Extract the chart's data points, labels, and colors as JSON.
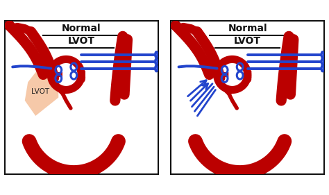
{
  "bg": "#ffffff",
  "red": "#bb0000",
  "blue": "#2244cc",
  "lvot_color": "#f5c4a0",
  "text_color": "#111111",
  "title1": "Normal",
  "title2": "LVOT",
  "lvot_label": "LVOT",
  "lw_main": 11,
  "lw_thin": 4
}
